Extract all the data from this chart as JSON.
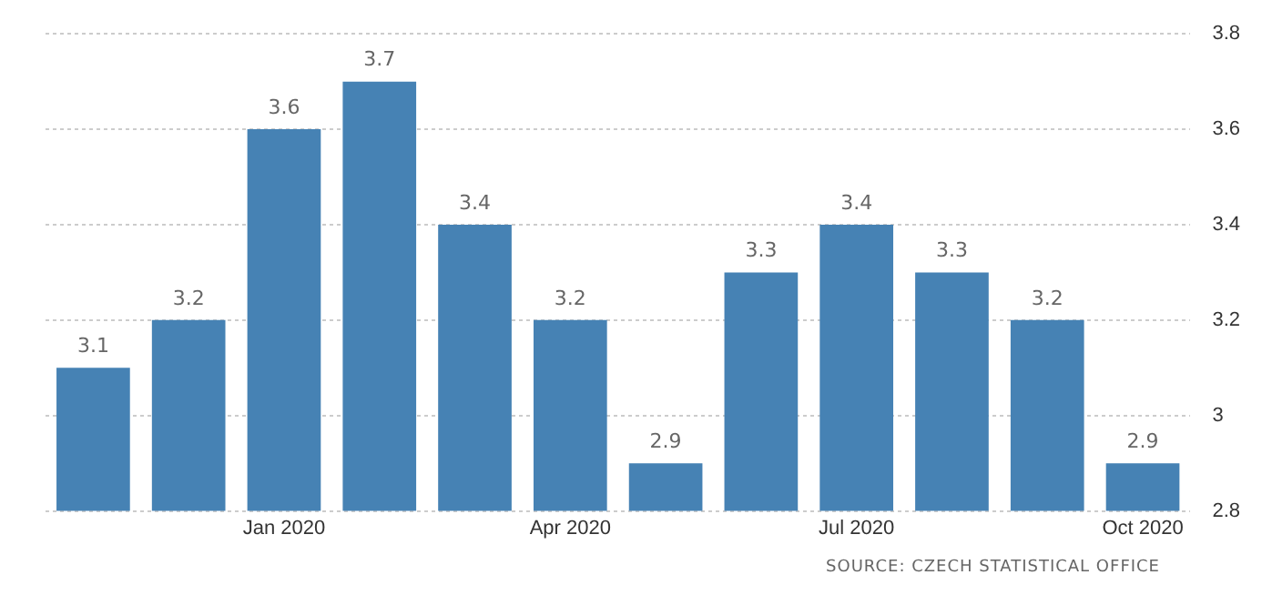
{
  "chart_data": {
    "type": "bar",
    "categories": [
      null,
      null,
      "Jan 2020",
      null,
      null,
      "Apr 2020",
      null,
      null,
      "Jul 2020",
      null,
      null,
      "Oct 2020"
    ],
    "values": [
      3.1,
      3.2,
      3.6,
      3.7,
      3.4,
      3.2,
      2.9,
      3.3,
      3.4,
      3.3,
      3.2,
      2.9
    ],
    "color": "#4682b4",
    "ylim": [
      2.8,
      3.8
    ],
    "yticks": [
      2.8,
      3,
      3.2,
      3.4,
      3.6,
      3.8
    ],
    "grid": "y",
    "data_labels": true,
    "annotations": [
      "SOURCE: CZECH STATISTICAL OFFICE"
    ]
  }
}
